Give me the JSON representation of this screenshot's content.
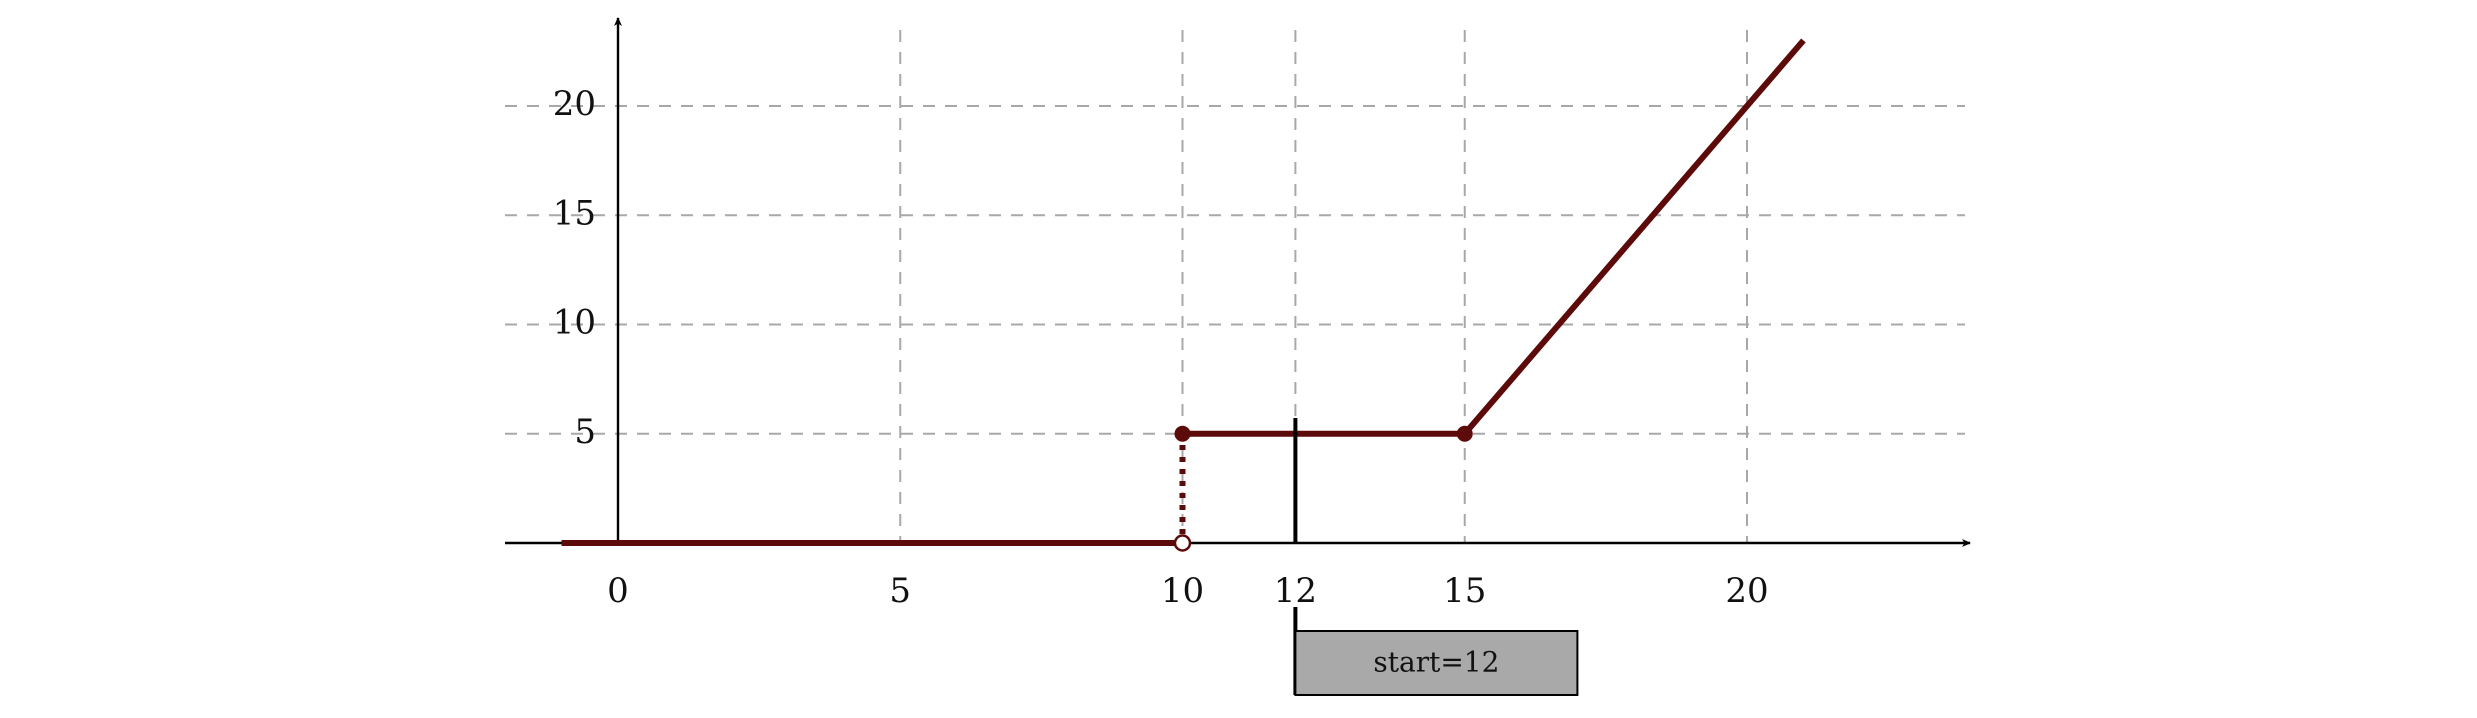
{
  "chart_data": {
    "type": "line",
    "xlim": [
      -2,
      24
    ],
    "ylim": [
      0,
      24
    ],
    "x_ticks": [
      0,
      5,
      10,
      12,
      15,
      20
    ],
    "y_ticks": [
      5,
      10,
      15,
      20
    ],
    "x_grid": [
      5,
      10,
      12,
      15,
      20
    ],
    "y_grid": [
      5,
      10,
      15,
      20
    ],
    "grid": true,
    "grid_style": "dashed",
    "series": [
      {
        "segments": [
          [
            [
              -1,
              0
            ],
            [
              10,
              0
            ]
          ],
          [
            [
              10,
              5
            ],
            [
              15,
              5
            ],
            [
              21,
              23
            ]
          ]
        ],
        "jump": [
          [
            10,
            0
          ],
          [
            10,
            5
          ]
        ],
        "open_points": [
          [
            10,
            0
          ]
        ],
        "closed_points": [
          [
            10,
            5
          ],
          [
            15,
            5
          ]
        ],
        "color": "#5c0a0a"
      }
    ],
    "marker": {
      "x": 12,
      "label": "start=12"
    }
  }
}
